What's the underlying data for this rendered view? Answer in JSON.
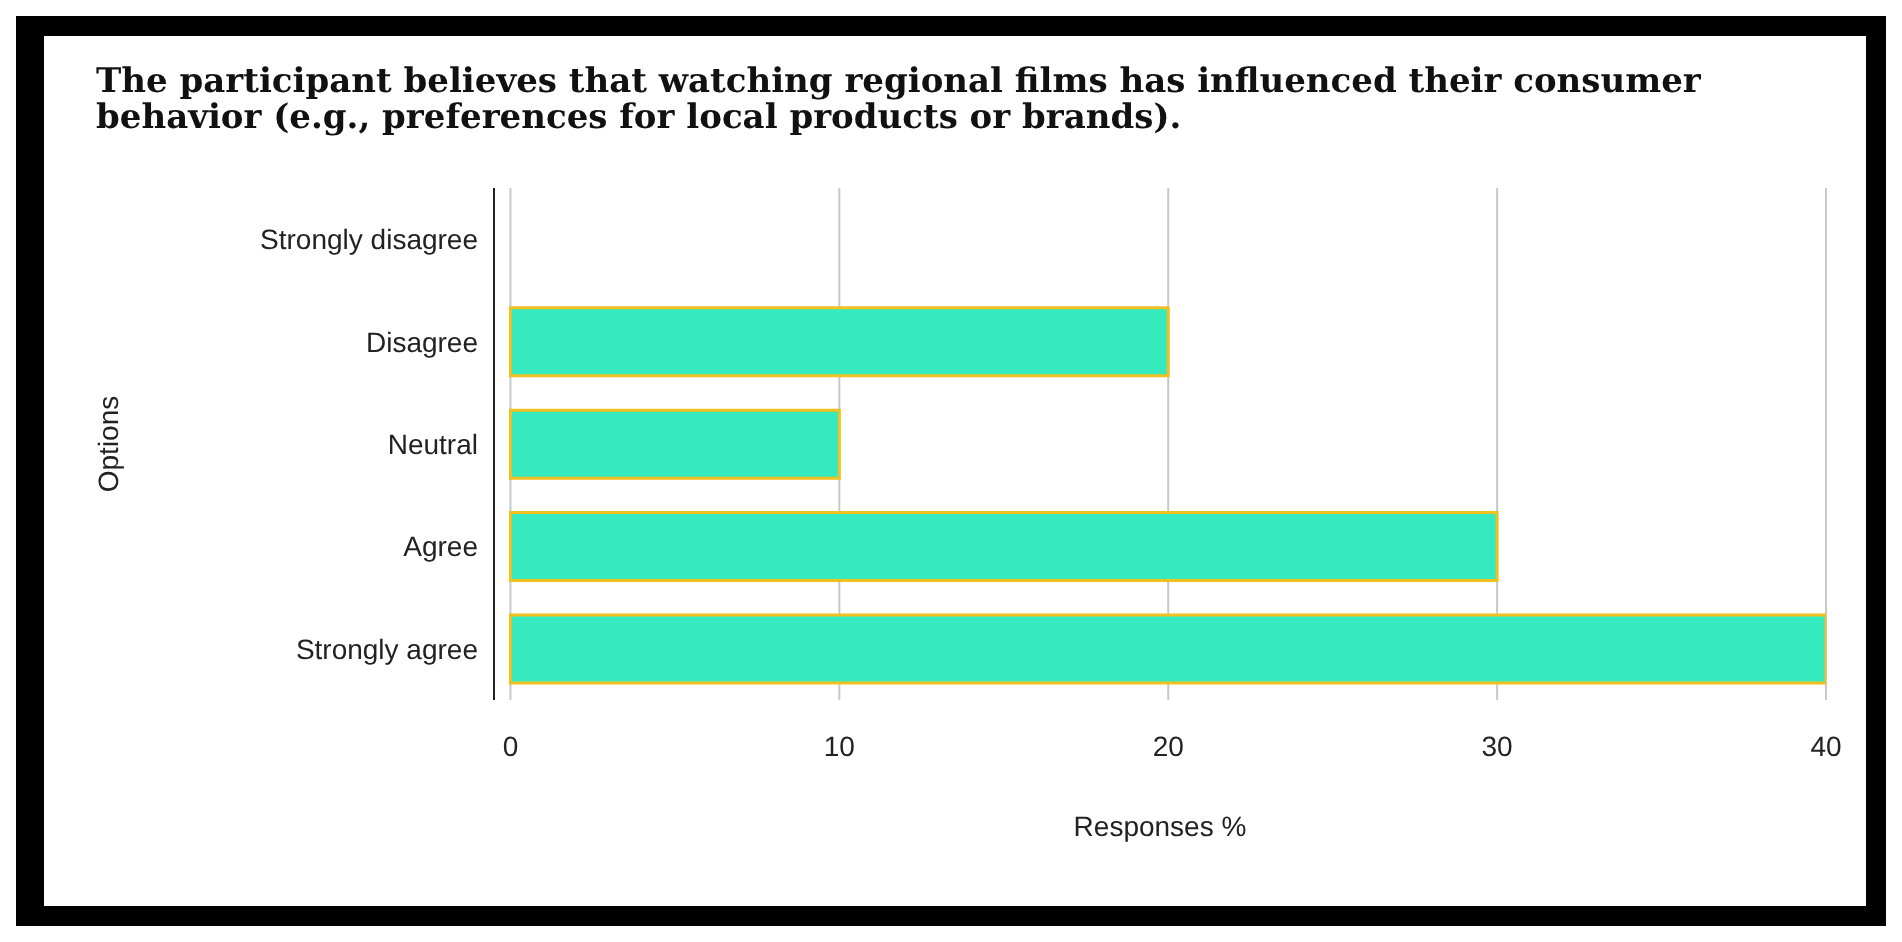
{
  "chart_data": {
    "type": "bar",
    "orientation": "horizontal",
    "title": "The participant believes that watching regional films has influenced their consumer behavior (e.g., preferences for local products or brands).",
    "xlabel": "Responses %",
    "ylabel": "Options",
    "categories": [
      "Strongly disagree",
      "Disagree",
      "Neutral",
      "Agree",
      "Strongly agree"
    ],
    "values": [
      0,
      20,
      10,
      30,
      40
    ],
    "color": "#36eabf",
    "xlim": [
      -0.5,
      40
    ],
    "xticks": [
      0,
      10,
      20,
      30,
      40
    ],
    "grid": "x"
  }
}
